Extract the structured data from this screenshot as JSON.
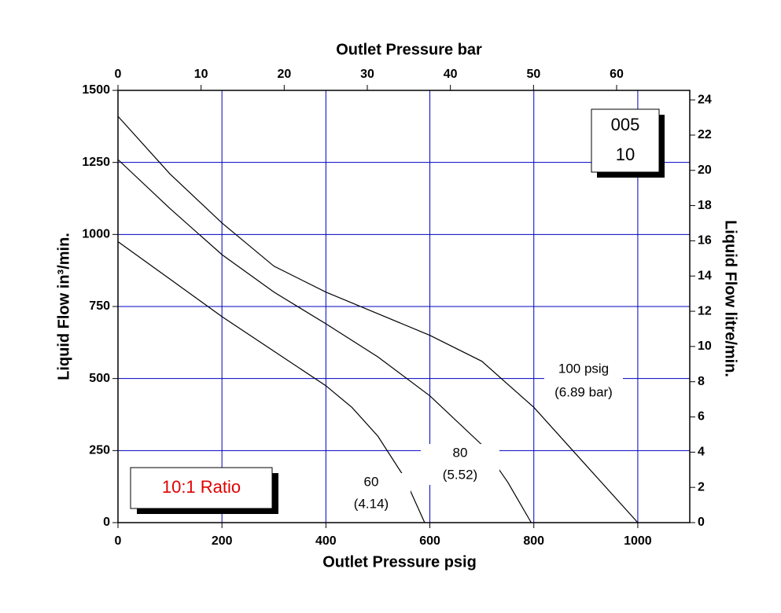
{
  "chart_data": {
    "type": "line",
    "x_label": "Outlet Pressure psig",
    "x2_label": "Outlet Pressure bar",
    "y_label": "Liquid Flow in³/min.",
    "y2_label": "Liquid Flow litre/min.",
    "xlim": [
      0,
      1100
    ],
    "xticks": [
      0,
      200,
      400,
      600,
      800,
      1000
    ],
    "x2lim": [
      0,
      68.8
    ],
    "x2ticks": [
      0,
      10,
      20,
      30,
      40,
      50,
      60
    ],
    "ylim": [
      0,
      1500
    ],
    "yticks": [
      0,
      250,
      500,
      750,
      1000,
      1250,
      1500
    ],
    "y2lim": [
      0,
      24.54
    ],
    "y2ticks": [
      0,
      2,
      4,
      6,
      8,
      10,
      12,
      14,
      16,
      18,
      20,
      22,
      24
    ],
    "grid": true,
    "color": "#0000c0",
    "series": [
      {
        "name": "100 psig",
        "note": "(6.89 bar)",
        "color": "#000000",
        "x": [
          0,
          100,
          200,
          300,
          400,
          500,
          600,
          700,
          800,
          900,
          1000
        ],
        "values": [
          1410,
          1210,
          1040,
          890,
          800,
          725,
          650,
          560,
          400,
          200,
          0
        ]
      },
      {
        "name": "80",
        "note": "(5.52)",
        "color": "#000000",
        "x": [
          0,
          100,
          200,
          300,
          400,
          500,
          600,
          700,
          750,
          795
        ],
        "values": [
          1260,
          1090,
          930,
          800,
          690,
          575,
          440,
          270,
          140,
          0
        ]
      },
      {
        "name": "60",
        "note": "(4.14)",
        "color": "#000000",
        "x": [
          0,
          100,
          200,
          300,
          400,
          450,
          500,
          550,
          590
        ],
        "values": [
          975,
          845,
          715,
          595,
          475,
          400,
          300,
          160,
          0
        ]
      }
    ],
    "annotations": [
      "005",
      "10",
      "10:1 Ratio"
    ]
  }
}
